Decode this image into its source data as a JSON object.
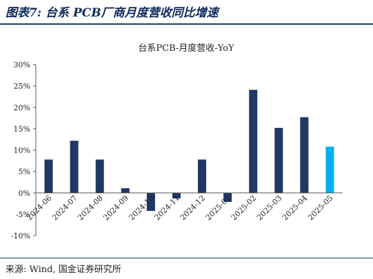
{
  "figure": {
    "title": "图表7: 台系 PCB厂商月度营收同比增速",
    "source": "来源: Wind, 国金证券研究所"
  },
  "chart_data": {
    "type": "bar",
    "title": "台系PCB-月度营收-YoY",
    "categories": [
      "2024-06",
      "2024-07",
      "2024-08",
      "2024-09",
      "2024-10",
      "2024-11",
      "2024-12",
      "2025-01",
      "2025-02",
      "2025-03",
      "2025-04",
      "2025-05"
    ],
    "values": [
      7.8,
      12.2,
      7.8,
      1.1,
      -4.2,
      -1.3,
      7.8,
      -2.1,
      24.1,
      15.2,
      17.7,
      10.8
    ],
    "ylim": [
      -10,
      30
    ],
    "yticks": [
      "-10%",
      "-5%",
      "0%",
      "5%",
      "10%",
      "15%",
      "20%",
      "25%",
      "30%"
    ],
    "ytick_values": [
      -10,
      -5,
      0,
      5,
      10,
      15,
      20,
      25,
      30
    ],
    "xlabel": "",
    "ylabel": "",
    "grid": false,
    "colors": {
      "bar": "#1f3864",
      "highlight": "#00b0f0"
    },
    "highlight_index": 11
  }
}
